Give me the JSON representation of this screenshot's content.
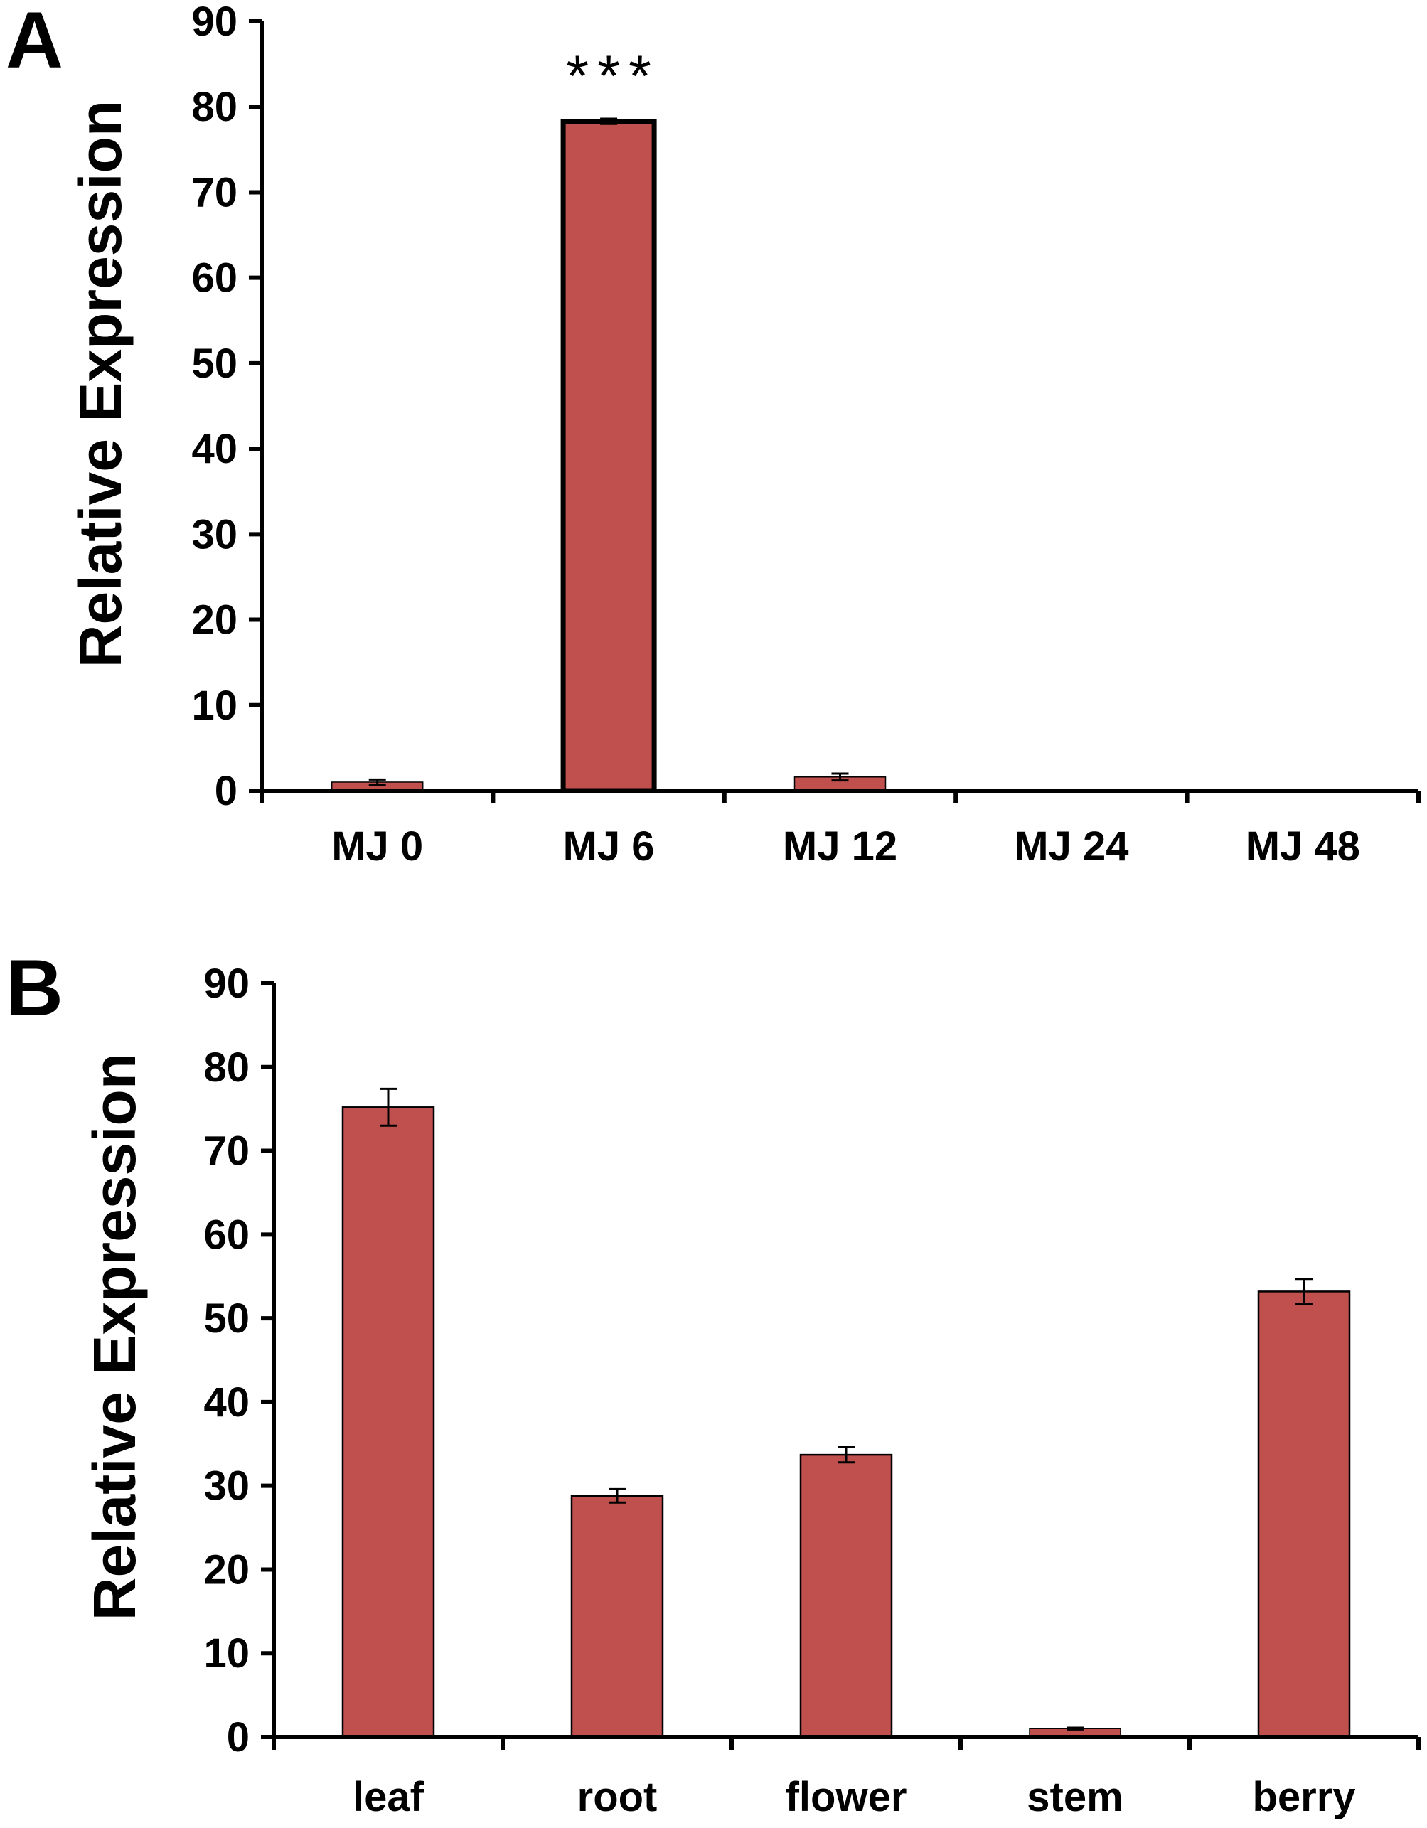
{
  "colors": {
    "bar": "#c0504d",
    "axis": "#000000",
    "background": "#ffffff"
  },
  "chart_data": [
    {
      "panel": "A",
      "type": "bar",
      "ylabel": "Relative Expression",
      "ylim": [
        0,
        90
      ],
      "yticks": [
        "0",
        "10",
        "20",
        "30",
        "40",
        "50",
        "60",
        "70",
        "80",
        "90"
      ],
      "categories": [
        "MJ 0",
        "MJ 6",
        "MJ 12",
        "MJ 24",
        "MJ 48"
      ],
      "values": [
        1.0,
        78.3,
        1.6,
        0,
        0
      ],
      "errors": [
        0.3,
        0.3,
        0.4,
        0,
        0
      ],
      "bar_outline": "thick",
      "annotations": [
        {
          "category": "MJ 6",
          "text": "***"
        }
      ]
    },
    {
      "panel": "B",
      "type": "bar",
      "ylabel": "Relative Expression",
      "ylim": [
        0,
        90
      ],
      "yticks": [
        "0",
        "10",
        "20",
        "30",
        "40",
        "50",
        "60",
        "70",
        "80",
        "90"
      ],
      "categories": [
        "leaf",
        "root",
        "flower",
        "stem",
        "berry"
      ],
      "values": [
        75.2,
        28.8,
        33.7,
        1.0,
        53.2
      ],
      "errors": [
        2.2,
        0.8,
        0.9,
        0.1,
        1.5
      ],
      "bar_outline": "thin",
      "annotations": []
    }
  ]
}
